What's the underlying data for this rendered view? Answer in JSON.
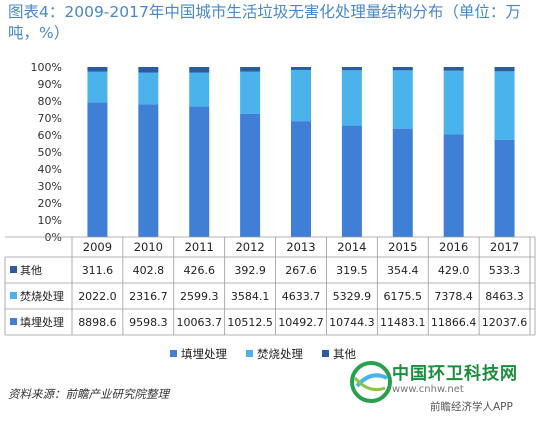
{
  "title": "图表4：2009-2017年中国城市生活垃圾无害化处理量结构分布（单位：万吨，%）",
  "source": "资料来源：前瞻产业研究院整理",
  "logo": {
    "name": "中国环卫科技网",
    "url": "www.cnhw.net",
    "app": "前瞻经济学人APP"
  },
  "colors": {
    "landfill": "#3f7fd6",
    "incineration": "#4bb3ec",
    "other": "#2c5aa3",
    "title": "#4a88c8"
  },
  "chart_data": {
    "type": "bar",
    "stacked": "percent",
    "categories": [
      "2009",
      "2010",
      "2011",
      "2012",
      "2013",
      "2014",
      "2015",
      "2016",
      "2017"
    ],
    "ylim": [
      0,
      100
    ],
    "y_ticks": [
      "0%",
      "10%",
      "20%",
      "30%",
      "40%",
      "50%",
      "60%",
      "70%",
      "80%",
      "90%",
      "100%"
    ],
    "series": [
      {
        "name": "其他",
        "color": "#2c5aa3",
        "values": [
          "311.6",
          "402.8",
          "426.6",
          "392.9",
          "267.6",
          "319.5",
          "354.4",
          "429.0",
          "533.3"
        ]
      },
      {
        "name": "焚烧处理",
        "color": "#4bb3ec",
        "values": [
          "2022.0",
          "2316.7",
          "2599.3",
          "3584.1",
          "4633.7",
          "5329.9",
          "6175.5",
          "7378.4",
          "8463.3"
        ]
      },
      {
        "name": "填埋处理",
        "color": "#3f7fd6",
        "values": [
          "8898.6",
          "9598.3",
          "10063.7",
          "10512.5",
          "10492.7",
          "10744.3",
          "11483.1",
          "11866.4",
          "12037.6"
        ]
      }
    ],
    "legend": [
      "填埋处理",
      "焚烧处理",
      "其他"
    ],
    "legend_position": "bottom",
    "grid": false
  }
}
